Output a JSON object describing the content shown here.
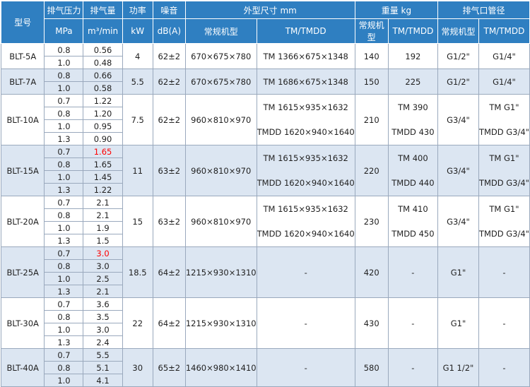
{
  "header": {
    "row1": [
      "型号",
      "排气压力",
      "排气量",
      "功率",
      "噪音",
      "外型尺寸 mm",
      "重量 kg",
      "排气口管径"
    ],
    "row2": [
      "MPa",
      "m³/min",
      "kW",
      "dB(A)",
      "常规机型",
      "TM/TMDD",
      "常规机型",
      "TM/TMDD",
      "常规机型",
      "TM/TMDD"
    ]
  },
  "highlight_color": "#ff0000",
  "models": [
    {
      "model": "BLT-5A",
      "pressures": [
        "0.8",
        "1.0"
      ],
      "flows": [
        "0.56",
        "0.48"
      ],
      "flow_colors": [
        null,
        null
      ],
      "power": "4",
      "noise": "62±2",
      "dims": "670×675×780",
      "dims_tm": [
        "TM 1366×675×1348"
      ],
      "weight": "140",
      "weight_tm": [
        "192"
      ],
      "outlet": "G1/2\"",
      "outlet_tm": [
        "G1/4\""
      ]
    },
    {
      "model": "BLT-7A",
      "pressures": [
        "0.8",
        "1.0"
      ],
      "flows": [
        "0.66",
        "0.58"
      ],
      "flow_colors": [
        null,
        null
      ],
      "power": "5.5",
      "noise": "62±2",
      "dims": "670×675×780",
      "dims_tm": [
        "TM 1686×675×1348"
      ],
      "weight": "150",
      "weight_tm": [
        "225"
      ],
      "outlet": "G1/2\"",
      "outlet_tm": [
        "G1/4\""
      ]
    },
    {
      "model": "BLT-10A",
      "pressures": [
        "0.7",
        "0.8",
        "1.0",
        "1.3"
      ],
      "flows": [
        "1.22",
        "1.20",
        "0.95",
        "0.90"
      ],
      "flow_colors": [
        null,
        null,
        null,
        null
      ],
      "power": "7.5",
      "noise": "62±2",
      "dims": "960×810×970",
      "dims_tm": [
        "TM 1615×935×1632",
        "TMDD 1620×940×1640"
      ],
      "weight": "210",
      "weight_tm": [
        "TM 390",
        "TMDD 430"
      ],
      "outlet": "G3/4\"",
      "outlet_tm": [
        "TM G1\"",
        "TMDD G3/4\""
      ]
    },
    {
      "model": "BLT-15A",
      "pressures": [
        "0.7",
        "0.8",
        "1.0",
        "1.3"
      ],
      "flows": [
        "1.65",
        "1.65",
        "1.45",
        "1.22"
      ],
      "flow_colors": [
        "#ff0000",
        null,
        null,
        null
      ],
      "power": "11",
      "noise": "63±2",
      "dims": "960×810×970",
      "dims_tm": [
        "TM 1615×935×1632",
        "TMDD 1620×940×1640"
      ],
      "weight": "220",
      "weight_tm": [
        "TM 400",
        "TMDD 440"
      ],
      "outlet": "G3/4\"",
      "outlet_tm": [
        "TM G1\"",
        "TMDD G3/4\""
      ]
    },
    {
      "model": "BLT-20A",
      "pressures": [
        "0.7",
        "0.8",
        "1.0",
        "1.3"
      ],
      "flows": [
        "2.1",
        "2.1",
        "1.9",
        "1.5"
      ],
      "flow_colors": [
        null,
        null,
        null,
        null
      ],
      "power": "15",
      "noise": "63±2",
      "dims": "960×810×970",
      "dims_tm": [
        "TM 1615×935×1632",
        "TMDD 1620×940×1640"
      ],
      "weight": "230",
      "weight_tm": [
        "TM 410",
        "TMDD 450"
      ],
      "outlet": "G3/4\"",
      "outlet_tm": [
        "TM G1\"",
        "TMDD G3/4\""
      ]
    },
    {
      "model": "BLT-25A",
      "pressures": [
        "0.7",
        "0.8",
        "1.0",
        "1.3"
      ],
      "flows": [
        "3.0",
        "3.0",
        "2.5",
        "2.1"
      ],
      "flow_colors": [
        "#ff0000",
        null,
        null,
        null
      ],
      "power": "18.5",
      "noise": "64±2",
      "dims": "1215×930×1310",
      "dims_tm": [
        "-"
      ],
      "weight": "420",
      "weight_tm": [
        "-"
      ],
      "outlet": "G1\"",
      "outlet_tm": [
        "-"
      ]
    },
    {
      "model": "BLT-30A",
      "pressures": [
        "0.7",
        "0.8",
        "1.0",
        "1.3"
      ],
      "flows": [
        "3.6",
        "3.5",
        "3.0",
        "2.4"
      ],
      "flow_colors": [
        null,
        null,
        null,
        null
      ],
      "power": "22",
      "noise": "64±2",
      "dims": "1215×930×1310",
      "dims_tm": [
        "-"
      ],
      "weight": "430",
      "weight_tm": [
        "-"
      ],
      "outlet": "G1\"",
      "outlet_tm": [
        "-"
      ]
    },
    {
      "model": "BLT-40A",
      "pressures": [
        "0.7",
        "0.8",
        "1.0"
      ],
      "flows": [
        "5.5",
        "5.1",
        "4.1"
      ],
      "flow_colors": [
        null,
        null,
        null
      ],
      "power": "30",
      "noise": "65±2",
      "dims": "1460×980×1410",
      "dims_tm": [
        "-"
      ],
      "weight": "580",
      "weight_tm": [
        "-"
      ],
      "outlet": "G1 1/2\"",
      "outlet_tm": [
        "-"
      ]
    }
  ]
}
